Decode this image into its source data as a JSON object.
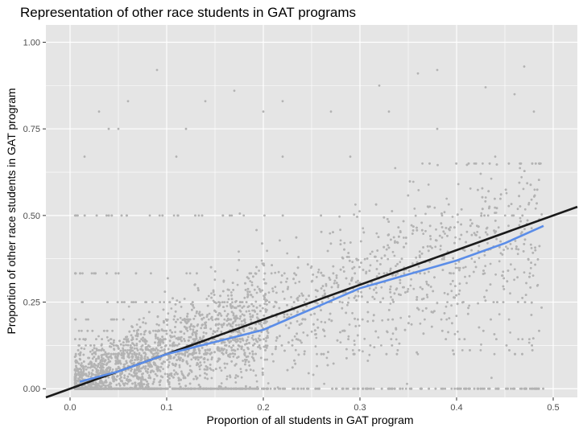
{
  "chart_data": {
    "type": "scatter",
    "title": "Representation of other race students in GAT programs",
    "xlabel": "Proportion of all students in GAT program",
    "ylabel": "Proportion of other race students in GAT program",
    "xlim": [
      -0.025,
      0.525
    ],
    "ylim": [
      -0.025,
      1.05
    ],
    "x_ticks": [
      0,
      0.1,
      0.2,
      0.3,
      0.4,
      0.5
    ],
    "x_tick_labels": [
      "0.0",
      "0.1",
      "0.2",
      "0.3",
      "0.4",
      "0.5"
    ],
    "y_ticks": [
      0,
      0.25,
      0.5,
      0.75,
      1.0
    ],
    "y_tick_labels": [
      "0.00",
      "0.25",
      "0.50",
      "0.75",
      "1.00"
    ],
    "grid": true,
    "legend": "none",
    "colors": {
      "panel": "#e5e5e5",
      "grid": "#ffffff",
      "points": "#b3b3b3",
      "smooth": "#5b8de8",
      "reference": "#1a1a1a"
    },
    "points_sample": [
      [
        0.09,
        0.92
      ],
      [
        0.47,
        0.93
      ],
      [
        0.32,
        0.875
      ],
      [
        0.36,
        0.91
      ],
      [
        0.38,
        0.92
      ],
      [
        0.46,
        0.85
      ],
      [
        0.04,
        0.75
      ],
      [
        0.06,
        0.83
      ],
      [
        0.17,
        0.86
      ],
      [
        0.14,
        0.83
      ],
      [
        0.2,
        0.8
      ],
      [
        0.22,
        0.83
      ],
      [
        0.27,
        0.8
      ],
      [
        0.38,
        0.75
      ],
      [
        0.48,
        0.8
      ],
      [
        0.03,
        0.8
      ],
      [
        0.12,
        0.75
      ],
      [
        0.11,
        0.67
      ],
      [
        0.22,
        0.67
      ],
      [
        0.29,
        0.67
      ],
      [
        0.44,
        0.67
      ],
      [
        0.33,
        0.8
      ],
      [
        0.43,
        0.87
      ],
      [
        0.015,
        0.67
      ],
      [
        0.05,
        0.75
      ]
    ],
    "smooth_line": {
      "x": [
        0.01,
        0.05,
        0.1,
        0.15,
        0.2,
        0.25,
        0.3,
        0.35,
        0.4,
        0.45,
        0.49
      ],
      "y": [
        0.02,
        0.05,
        0.1,
        0.135,
        0.17,
        0.23,
        0.29,
        0.33,
        0.37,
        0.42,
        0.47
      ]
    },
    "reference_line": {
      "x": [
        -0.025,
        0.525
      ],
      "y": [
        -0.025,
        0.525
      ]
    }
  }
}
